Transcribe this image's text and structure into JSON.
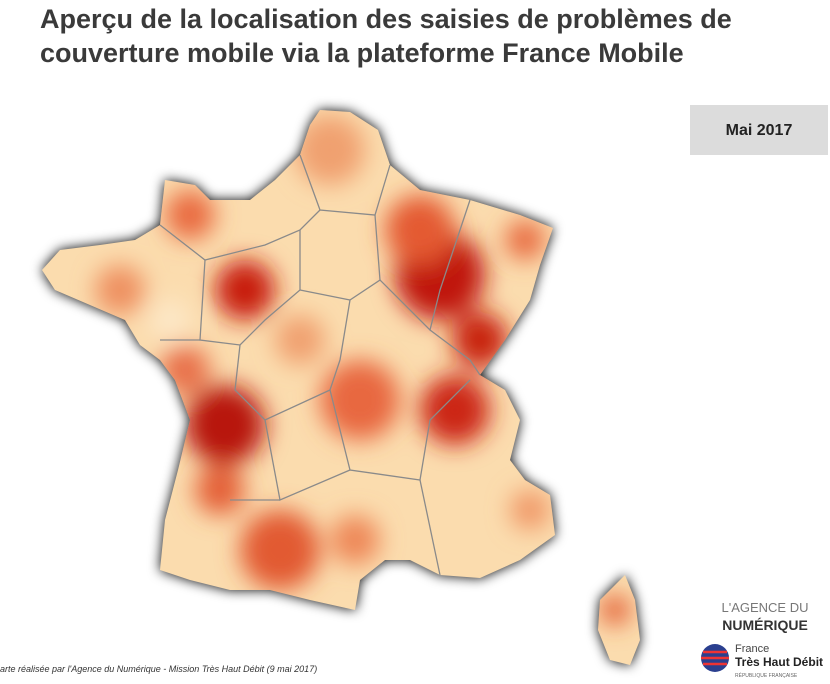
{
  "header": {
    "title_lines": [
      "Aperçu de la localisation des saisies de problèmes de",
      "couverture mobile via la plateforme France Mobile"
    ]
  },
  "date_badge": "Mai 2017",
  "credit": "arte réalisée par l'Agence du Numérique - Mission Très Haut Débit (9 mai 2017)",
  "logos": {
    "agence_top": "L'AGENCE DU",
    "agence_bottom": "NUMÉRIQUE",
    "thd_top": "France",
    "thd_main": "Très Haut Débit",
    "thd_sub": "RÉPUBLIQUE FRANÇAISE"
  }
}
